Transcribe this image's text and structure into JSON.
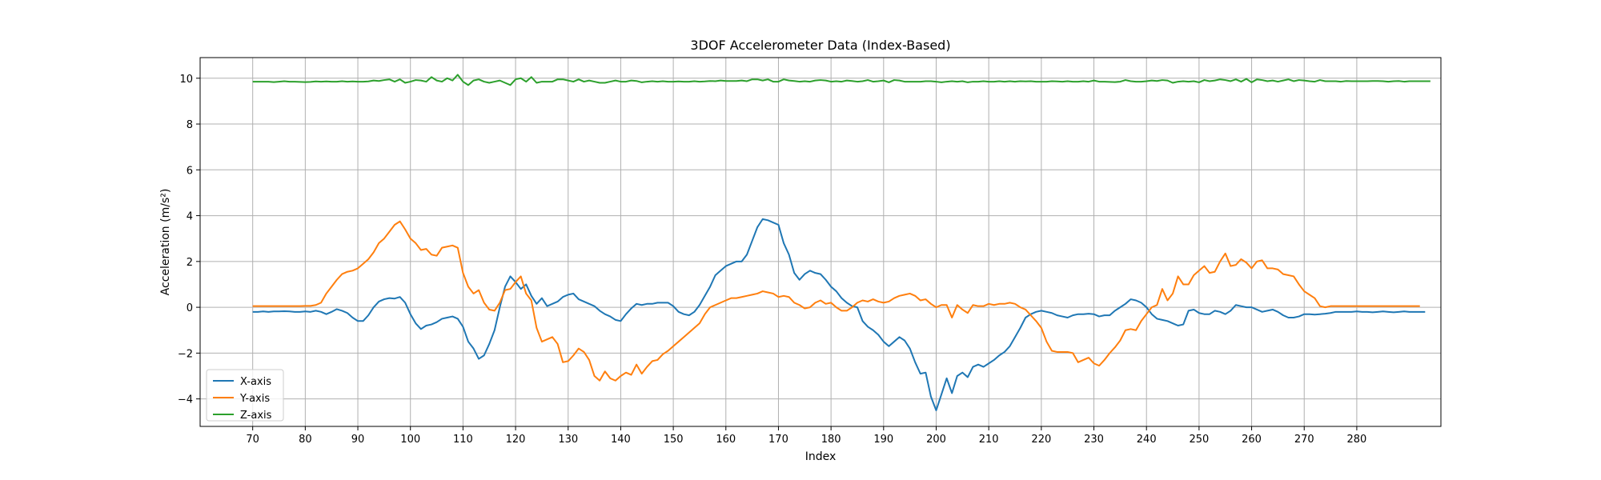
{
  "chart_data": {
    "type": "line",
    "title": "3DOF Accelerometer Data (Index-Based)",
    "xlabel": "Index",
    "ylabel": "Acceleration (m/s²)",
    "xlim": [
      60,
      296
    ],
    "ylim": [
      -5.2,
      10.9
    ],
    "x_ticks": [
      70,
      80,
      90,
      100,
      110,
      120,
      130,
      140,
      150,
      160,
      170,
      180,
      190,
      200,
      210,
      220,
      230,
      240,
      250,
      260,
      270,
      280
    ],
    "y_ticks": [
      -4,
      -2,
      0,
      2,
      4,
      6,
      8,
      10
    ],
    "grid": true,
    "legend_position": "lower-left",
    "x_start": 70,
    "series": [
      {
        "name": "X-axis",
        "color": "#1f77b4",
        "values": [
          -0.2,
          -0.2,
          -0.18,
          -0.2,
          -0.18,
          -0.18,
          -0.17,
          -0.18,
          -0.2,
          -0.2,
          -0.18,
          -0.2,
          -0.15,
          -0.2,
          -0.3,
          -0.2,
          -0.08,
          -0.15,
          -0.25,
          -0.45,
          -0.6,
          -0.6,
          -0.35,
          0.0,
          0.25,
          0.35,
          0.4,
          0.38,
          0.45,
          0.2,
          -0.3,
          -0.7,
          -0.95,
          -0.8,
          -0.75,
          -0.65,
          -0.5,
          -0.45,
          -0.4,
          -0.5,
          -0.85,
          -1.5,
          -1.8,
          -2.25,
          -2.1,
          -1.6,
          -1.0,
          0.0,
          0.9,
          1.35,
          1.1,
          0.8,
          1.0,
          0.5,
          0.15,
          0.4,
          0.05,
          0.15,
          0.25,
          0.45,
          0.55,
          0.6,
          0.35,
          0.25,
          0.15,
          0.05,
          -0.15,
          -0.3,
          -0.4,
          -0.55,
          -0.6,
          -0.3,
          -0.05,
          0.15,
          0.1,
          0.15,
          0.15,
          0.2,
          0.2,
          0.2,
          0.05,
          -0.2,
          -0.3,
          -0.35,
          -0.2,
          0.1,
          0.5,
          0.9,
          1.4,
          1.6,
          1.8,
          1.9,
          2.0,
          2.0,
          2.3,
          2.9,
          3.5,
          3.85,
          3.8,
          3.7,
          3.6,
          2.8,
          2.3,
          1.5,
          1.2,
          1.45,
          1.6,
          1.5,
          1.45,
          1.2,
          0.9,
          0.7,
          0.4,
          0.2,
          0.05,
          0.0,
          -0.6,
          -0.85,
          -1.0,
          -1.2,
          -1.5,
          -1.7,
          -1.5,
          -1.3,
          -1.45,
          -1.8,
          -2.4,
          -2.9,
          -2.85,
          -3.9,
          -4.5,
          -3.8,
          -3.1,
          -3.75,
          -3.0,
          -2.85,
          -3.05,
          -2.6,
          -2.5,
          -2.6,
          -2.45,
          -2.3,
          -2.1,
          -1.95,
          -1.7,
          -1.3,
          -0.9,
          -0.45,
          -0.3,
          -0.2,
          -0.15,
          -0.2,
          -0.25,
          -0.35,
          -0.4,
          -0.45,
          -0.35,
          -0.3,
          -0.3,
          -0.28,
          -0.3,
          -0.4,
          -0.35,
          -0.35,
          -0.15,
          0.0,
          0.15,
          0.35,
          0.3,
          0.2,
          0.0,
          -0.3,
          -0.5,
          -0.55,
          -0.6,
          -0.7,
          -0.8,
          -0.75,
          -0.15,
          -0.1,
          -0.25,
          -0.3,
          -0.3,
          -0.15,
          -0.2,
          -0.3,
          -0.15,
          0.1,
          0.05,
          0.0,
          0.0,
          -0.1,
          -0.2,
          -0.15,
          -0.1,
          -0.2,
          -0.35,
          -0.45,
          -0.45,
          -0.4,
          -0.3,
          -0.3,
          -0.32,
          -0.3,
          -0.28,
          -0.25,
          -0.2,
          -0.2,
          -0.2,
          -0.2,
          -0.18,
          -0.2,
          -0.2,
          -0.22,
          -0.2,
          -0.18,
          -0.2,
          -0.22,
          -0.2,
          -0.18,
          -0.2,
          -0.2,
          -0.2,
          -0.2
        ]
      },
      {
        "name": "Y-axis",
        "color": "#ff7f0e",
        "values": [
          0.05,
          0.05,
          0.05,
          0.05,
          0.05,
          0.05,
          0.05,
          0.05,
          0.05,
          0.05,
          0.06,
          0.06,
          0.1,
          0.2,
          0.6,
          0.9,
          1.2,
          1.45,
          1.55,
          1.6,
          1.7,
          1.9,
          2.1,
          2.4,
          2.8,
          3.0,
          3.3,
          3.6,
          3.75,
          3.4,
          3.0,
          2.8,
          2.5,
          2.55,
          2.3,
          2.25,
          2.6,
          2.65,
          2.7,
          2.6,
          1.5,
          0.9,
          0.6,
          0.75,
          0.2,
          -0.1,
          -0.15,
          0.2,
          0.75,
          0.8,
          1.1,
          1.35,
          0.6,
          0.3,
          -0.9,
          -1.5,
          -1.4,
          -1.3,
          -1.6,
          -2.4,
          -2.35,
          -2.1,
          -1.8,
          -1.95,
          -2.3,
          -3.0,
          -3.2,
          -2.8,
          -3.1,
          -3.2,
          -3.0,
          -2.85,
          -2.95,
          -2.5,
          -2.9,
          -2.6,
          -2.35,
          -2.3,
          -2.05,
          -1.9,
          -1.7,
          -1.5,
          -1.3,
          -1.1,
          -0.9,
          -0.7,
          -0.3,
          0.0,
          0.1,
          0.2,
          0.3,
          0.4,
          0.4,
          0.45,
          0.5,
          0.55,
          0.6,
          0.7,
          0.65,
          0.6,
          0.45,
          0.5,
          0.45,
          0.2,
          0.1,
          -0.05,
          0.0,
          0.2,
          0.3,
          0.15,
          0.2,
          0.0,
          -0.15,
          -0.15,
          0.0,
          0.2,
          0.3,
          0.25,
          0.35,
          0.25,
          0.2,
          0.25,
          0.4,
          0.5,
          0.55,
          0.6,
          0.5,
          0.3,
          0.35,
          0.15,
          0.0,
          0.1,
          0.1,
          -0.45,
          0.1,
          -0.1,
          -0.25,
          0.1,
          0.05,
          0.05,
          0.15,
          0.1,
          0.15,
          0.15,
          0.2,
          0.15,
          0.0,
          -0.1,
          -0.35,
          -0.6,
          -0.9,
          -1.5,
          -1.9,
          -1.95,
          -1.95,
          -1.95,
          -2.0,
          -2.4,
          -2.3,
          -2.2,
          -2.45,
          -2.55,
          -2.3,
          -2.0,
          -1.75,
          -1.45,
          -1.0,
          -0.95,
          -1.0,
          -0.6,
          -0.3,
          0.0,
          0.1,
          0.8,
          0.3,
          0.6,
          1.35,
          1.0,
          1.0,
          1.4,
          1.6,
          1.8,
          1.5,
          1.55,
          2.0,
          2.35,
          1.8,
          1.85,
          2.1,
          1.95,
          1.7,
          2.0,
          2.05,
          1.7,
          1.7,
          1.65,
          1.45,
          1.4,
          1.35,
          1.0,
          0.7,
          0.55,
          0.4,
          0.05,
          0.0,
          0.05,
          0.05,
          0.05,
          0.05,
          0.05,
          0.05,
          0.05,
          0.05,
          0.05,
          0.05,
          0.05,
          0.05,
          0.05,
          0.05,
          0.05,
          0.05,
          0.05,
          0.05
        ]
      },
      {
        "name": "Z-axis",
        "color": "#2ca02c",
        "values": [
          9.85,
          9.85,
          9.85,
          9.85,
          9.83,
          9.85,
          9.87,
          9.85,
          9.85,
          9.84,
          9.83,
          9.84,
          9.86,
          9.85,
          9.86,
          9.85,
          9.85,
          9.87,
          9.85,
          9.86,
          9.85,
          9.85,
          9.86,
          9.9,
          9.88,
          9.92,
          9.95,
          9.85,
          9.95,
          9.8,
          9.85,
          9.92,
          9.9,
          9.85,
          10.05,
          9.9,
          9.85,
          10.0,
          9.9,
          10.15,
          9.85,
          9.7,
          9.9,
          9.95,
          9.85,
          9.8,
          9.85,
          9.9,
          9.8,
          9.7,
          9.95,
          10.0,
          9.85,
          10.05,
          9.8,
          9.85,
          9.85,
          9.85,
          9.95,
          9.95,
          9.9,
          9.85,
          9.95,
          9.85,
          9.9,
          9.85,
          9.8,
          9.8,
          9.85,
          9.9,
          9.85,
          9.85,
          9.9,
          9.88,
          9.82,
          9.85,
          9.87,
          9.85,
          9.87,
          9.85,
          9.85,
          9.86,
          9.85,
          9.85,
          9.87,
          9.85,
          9.86,
          9.88,
          9.87,
          9.9,
          9.88,
          9.88,
          9.88,
          9.9,
          9.87,
          9.95,
          9.95,
          9.9,
          9.95,
          9.85,
          9.85,
          9.95,
          9.9,
          9.88,
          9.85,
          9.87,
          9.85,
          9.9,
          9.92,
          9.9,
          9.85,
          9.87,
          9.85,
          9.9,
          9.88,
          9.85,
          9.87,
          9.92,
          9.85,
          9.87,
          9.9,
          9.82,
          9.92,
          9.9,
          9.85,
          9.85,
          9.85,
          9.85,
          9.87,
          9.87,
          9.85,
          9.82,
          9.85,
          9.87,
          9.85,
          9.87,
          9.82,
          9.85,
          9.85,
          9.87,
          9.85,
          9.85,
          9.87,
          9.85,
          9.87,
          9.85,
          9.87,
          9.86,
          9.87,
          9.85,
          9.85,
          9.85,
          9.87,
          9.86,
          9.85,
          9.87,
          9.85,
          9.85,
          9.87,
          9.85,
          9.9,
          9.85,
          9.85,
          9.84,
          9.83,
          9.85,
          9.92,
          9.87,
          9.85,
          9.85,
          9.87,
          9.9,
          9.88,
          9.92,
          9.9,
          9.8,
          9.85,
          9.87,
          9.85,
          9.87,
          9.82,
          9.92,
          9.87,
          9.9,
          9.95,
          9.92,
          9.87,
          9.95,
          9.85,
          9.97,
          9.82,
          9.95,
          9.92,
          9.87,
          9.9,
          9.85,
          9.9,
          9.95,
          9.87,
          9.92,
          9.9,
          9.87,
          9.85,
          9.92,
          9.87,
          9.87,
          9.87,
          9.85,
          9.88,
          9.87,
          9.87,
          9.87,
          9.87,
          9.88,
          9.88,
          9.87,
          9.85,
          9.87,
          9.88,
          9.85,
          9.87,
          9.87,
          9.87,
          9.87,
          9.87
        ]
      }
    ]
  }
}
